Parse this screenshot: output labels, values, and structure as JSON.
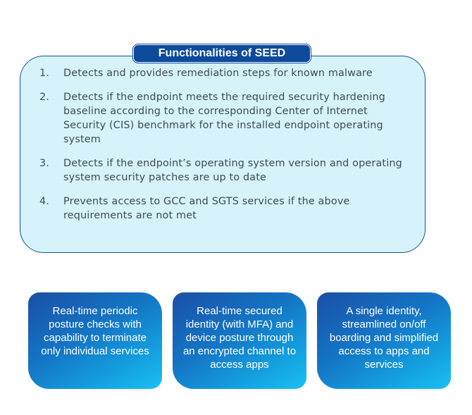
{
  "functionalities": {
    "title": "Functionalities of SEED",
    "items": [
      {
        "number": "1.",
        "text": "Detects and provides remediation steps for known malware"
      },
      {
        "number": "2.",
        "text": "Detects if the endpoint meets the required security hardening baseline according to the corresponding Center of Internet Security (CIS) benchmark for the installed endpoint operating system"
      },
      {
        "number": "3.",
        "text": "Detects if the endpoint’s operating system version and operating system security patches are up to date"
      },
      {
        "number": "4.",
        "text": "Prevents access to GCC and SGTS services if the above requirements are not met"
      }
    ]
  },
  "cards": [
    {
      "text": "Real-time periodic posture checks with capability to terminate only individual services"
    },
    {
      "text": "Real-time secured identity (with MFA) and device posture through an encrypted channel to access apps"
    },
    {
      "text": "A single identity, streamlined on/off boarding and simplified access to apps and services"
    }
  ],
  "colors": {
    "panel_background": "#d6f3fb",
    "panel_border": "#1b4e9b",
    "title_background": "#0d4a9c",
    "card_gradient_start": "#1a4fa6",
    "card_gradient_end": "#1cc0f0",
    "body_text": "#404a57"
  }
}
